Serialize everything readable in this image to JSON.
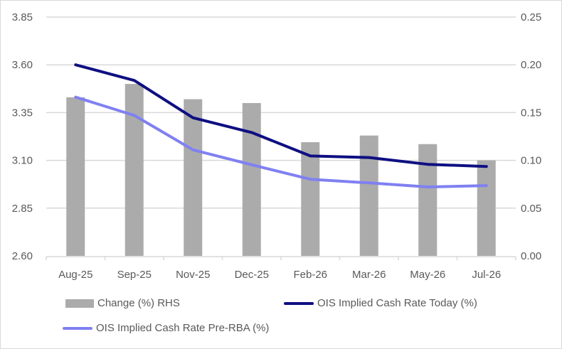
{
  "chart_data": {
    "type": "bar+line",
    "title": "",
    "categories": [
      "Aug-25",
      "Sep-25",
      "Nov-25",
      "Dec-25",
      "Feb-26",
      "Mar-26",
      "May-26",
      "Jul-26"
    ],
    "left_axis": {
      "label": "",
      "range": [
        2.6,
        3.85
      ],
      "ticks": [
        "2.60",
        "2.85",
        "3.10",
        "3.35",
        "3.60",
        "3.85"
      ]
    },
    "right_axis": {
      "label": "",
      "range": [
        0.0,
        0.25
      ],
      "ticks": [
        "0.00",
        "0.05",
        "0.10",
        "0.15",
        "0.20",
        "0.25"
      ]
    },
    "grid": true,
    "legend_position": "bottom",
    "series": [
      {
        "name": "Change (%) RHS",
        "type": "bar",
        "axis": "right",
        "color": "#ababab",
        "values": [
          0.166,
          0.18,
          0.164,
          0.16,
          0.119,
          0.126,
          0.117,
          0.1
        ]
      },
      {
        "name": "OIS Implied Cash Rate Today (%)",
        "type": "line",
        "axis": "left",
        "color": "#0f0f82",
        "values": [
          3.6,
          3.518,
          3.323,
          3.246,
          3.123,
          3.115,
          3.079,
          3.068
        ]
      },
      {
        "name": "OIS Implied Cash Rate Pre-RBA (%)",
        "type": "line",
        "axis": "left",
        "color": "#8080f2",
        "values": [
          3.431,
          3.335,
          3.155,
          3.077,
          3.001,
          2.982,
          2.961,
          2.968
        ]
      }
    ]
  },
  "legend": {
    "items": [
      {
        "label": "Change (%) RHS",
        "kind": "bar",
        "color": "#ababab"
      },
      {
        "label": "OIS Implied Cash Rate Today (%)",
        "kind": "line",
        "color": "#0f0f82"
      },
      {
        "label": "OIS Implied Cash Rate Pre-RBA (%)",
        "kind": "line",
        "color": "#8080f2"
      }
    ]
  },
  "colors": {
    "gridline": "#d9d9d9",
    "tick_text": "#595959"
  }
}
